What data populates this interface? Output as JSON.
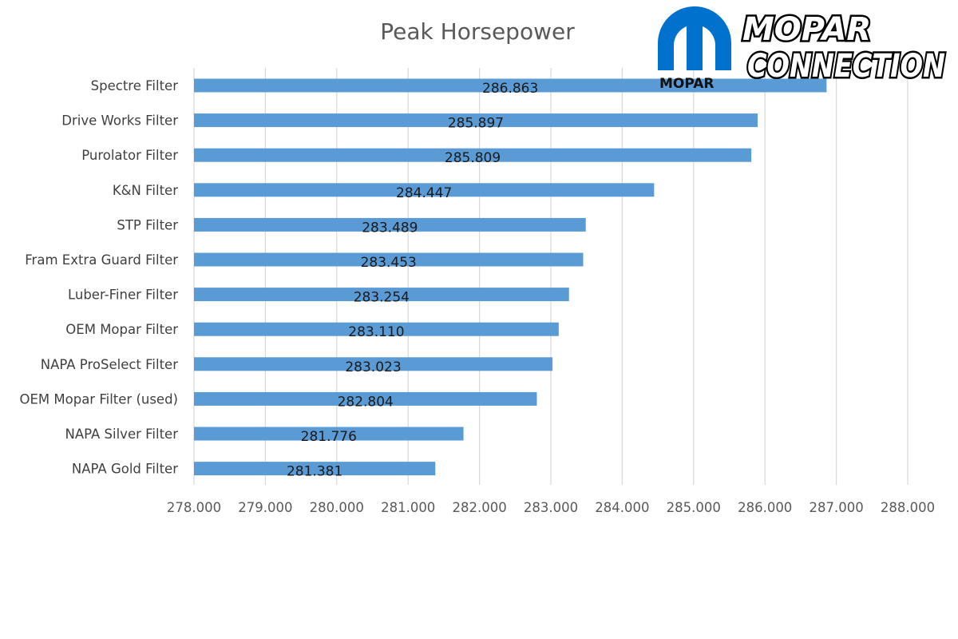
{
  "chart_data": {
    "type": "bar",
    "orientation": "horizontal",
    "title": "Peak Horsepower",
    "categories": [
      "Spectre Filter",
      "Drive Works Filter",
      "Purolator Filter",
      "K&N Filter",
      "STP Filter",
      "Fram Extra Guard Filter",
      "Luber-Finer Filter",
      "OEM Mopar Filter",
      "NAPA ProSelect Filter",
      "OEM Mopar Filter (used)",
      "NAPA Silver Filter",
      "NAPA Gold Filter"
    ],
    "values": [
      286.863,
      285.897,
      285.809,
      284.447,
      283.489,
      283.453,
      283.254,
      283.11,
      283.023,
      282.804,
      281.776,
      281.381
    ],
    "value_labels": [
      "286.863",
      "285.897",
      "285.809",
      "284.447",
      "283.489",
      "283.453",
      "283.254",
      "283.110",
      "283.023",
      "282.804",
      "281.776",
      "281.381"
    ],
    "xlim": [
      278,
      288
    ],
    "x_ticks": [
      "278.000",
      "279.000",
      "280.000",
      "281.000",
      "282.000",
      "283.000",
      "284.000",
      "285.000",
      "286.000",
      "287.000",
      "288.000"
    ],
    "xlabel": "",
    "ylabel": "",
    "grid": "vertical",
    "bar_color": "#5b9bd5",
    "grid_color": "#d9d9d9"
  },
  "logo": {
    "brand_line1": "MOPAR",
    "brand_line2": "CONNECTION",
    "emblem_text": "MOPAR",
    "emblem_color": "#0072ce"
  }
}
